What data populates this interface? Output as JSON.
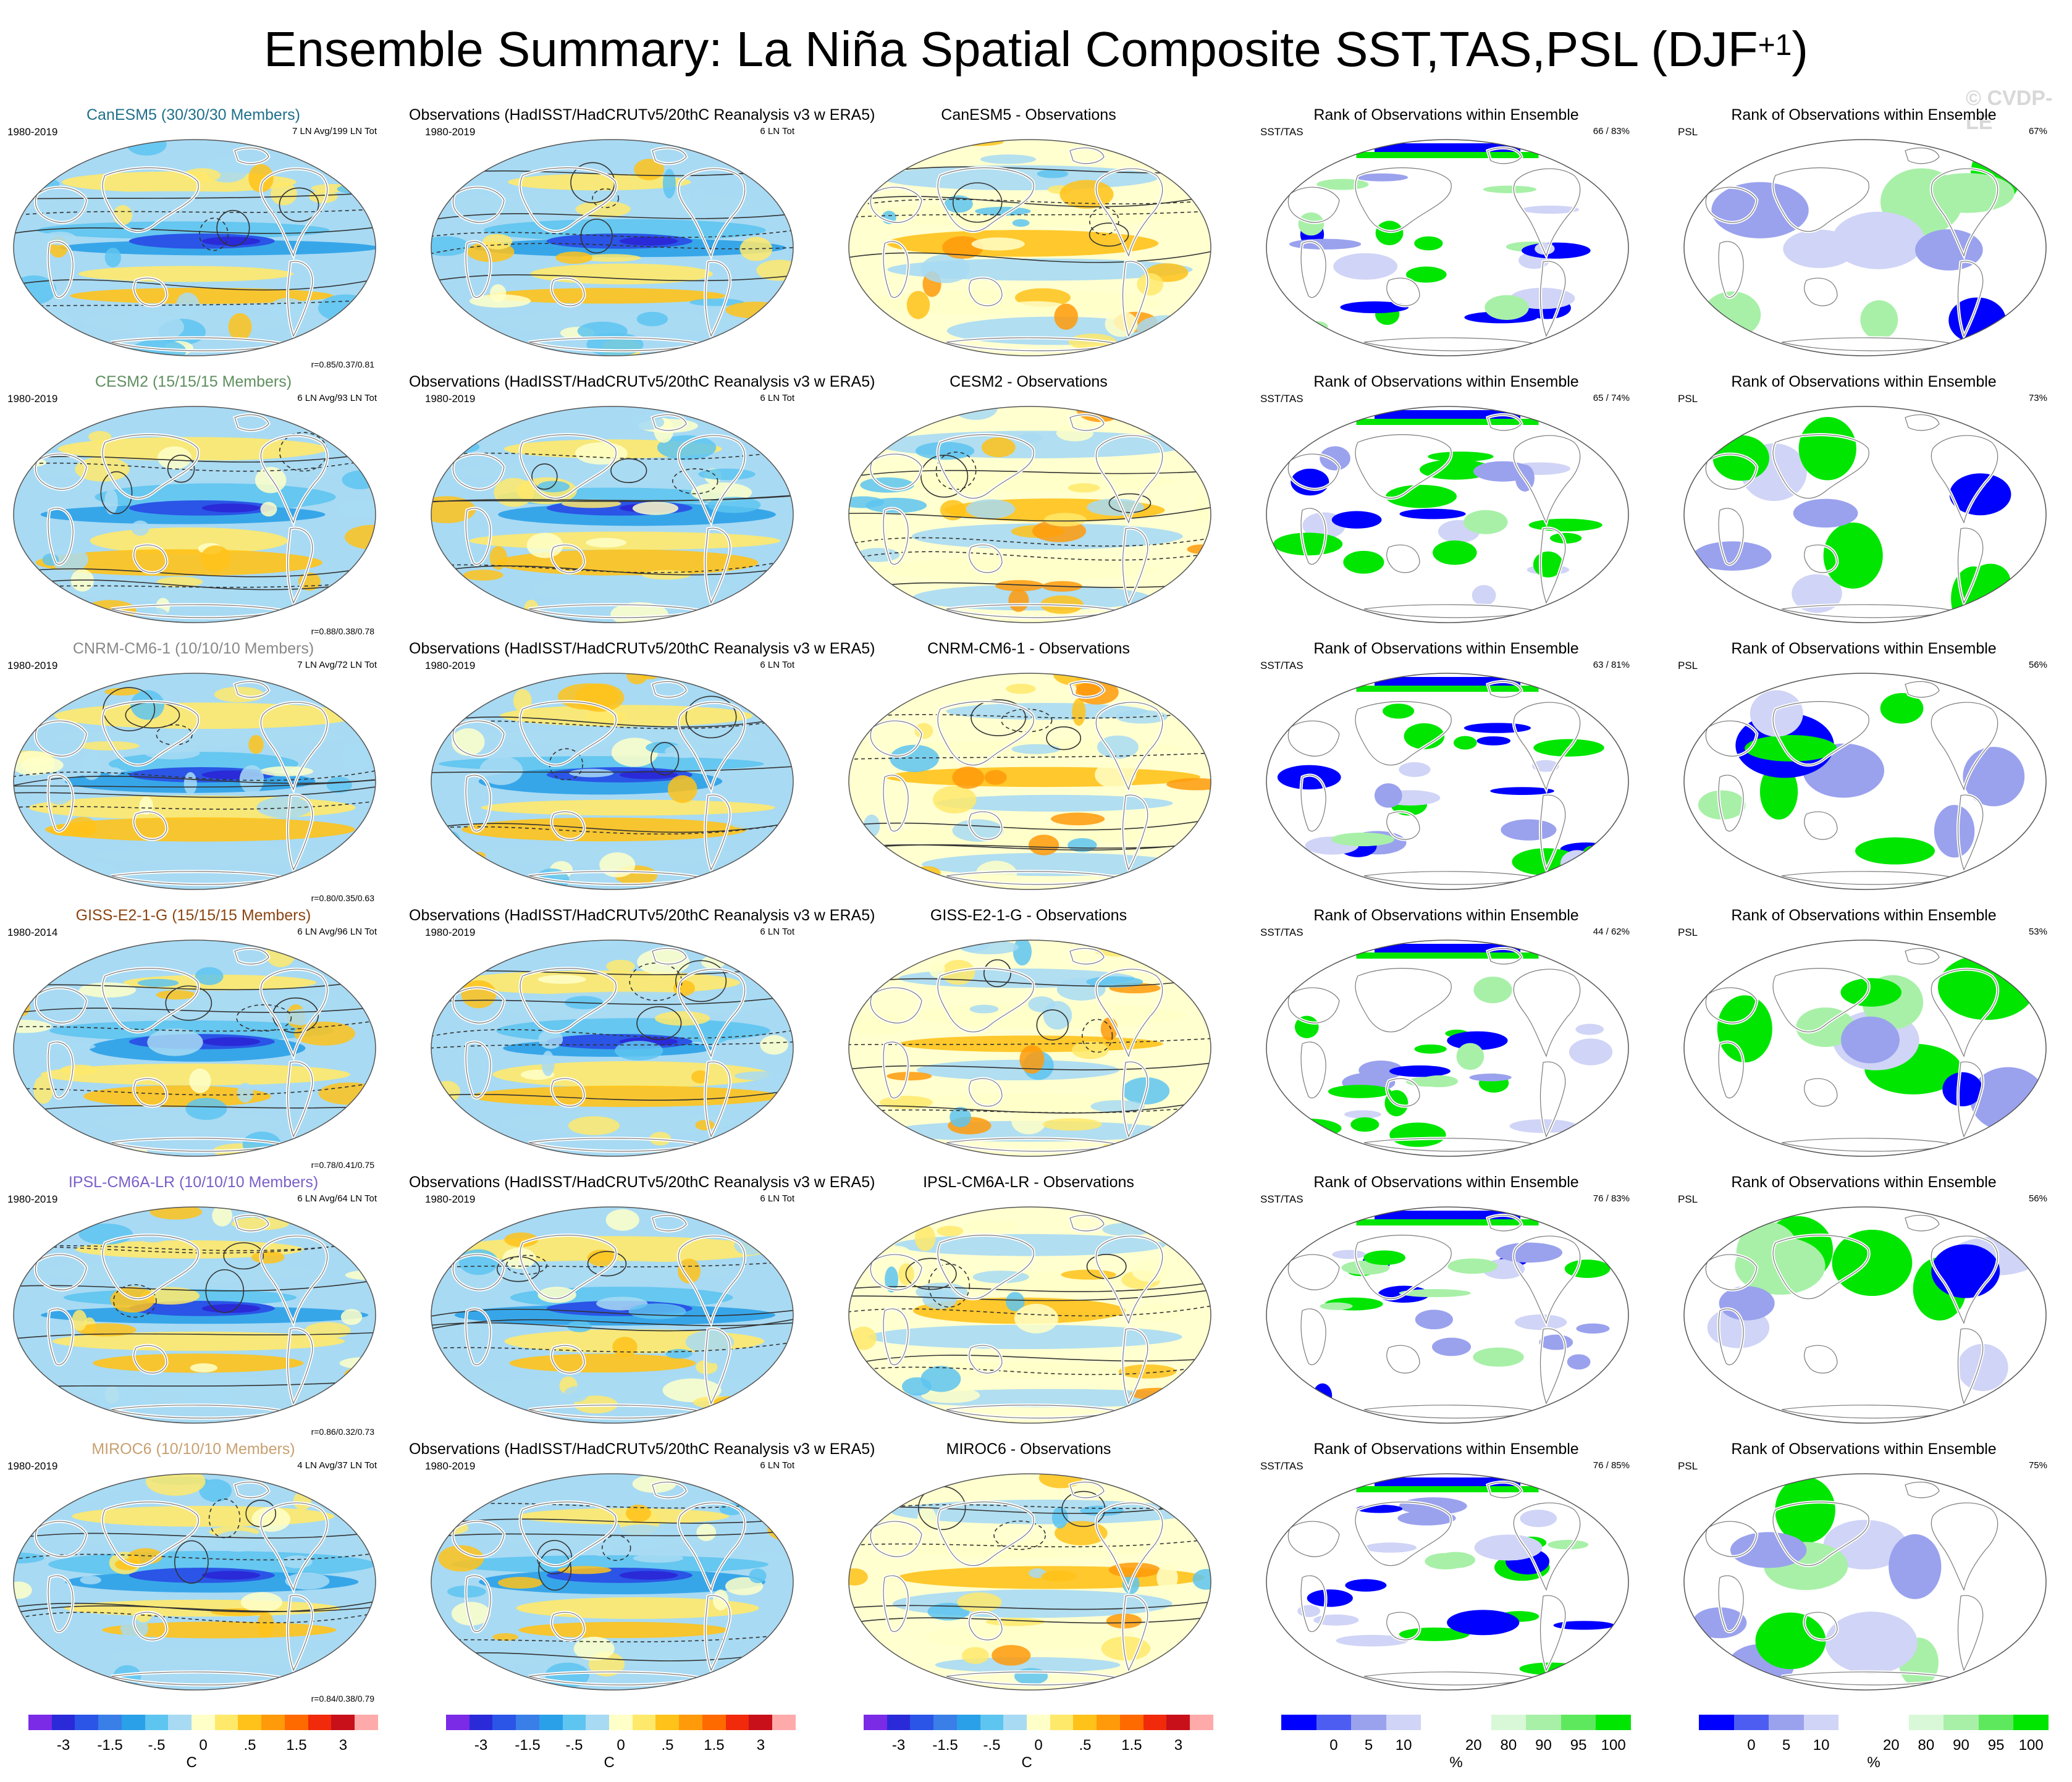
{
  "title": "Ensemble Summary: La Niña Spatial Composite SST,TAS,PSL (DJF",
  "title_sup": "+1",
  "title_close": ")",
  "watermark": "© CVDP-LE",
  "rows": [
    {
      "model": {
        "title": "CanESM5 (30/30/30 Members)",
        "title_color": "#1f6f8b",
        "period": "1980-2019",
        "count": "7 LN Avg/199 LN Tot",
        "corr": "r=0.85/0.37/0.81"
      },
      "obs": {
        "title": "Observations (HadISST/HadCRUTv5/20thC Reanalysis v3 w ERA5)",
        "period": "1980-2019",
        "count": "6 LN Tot"
      },
      "diff": {
        "title": "CanESM5 - Observations"
      },
      "rank_sst": {
        "title": "Rank of Observations within Ensemble",
        "label": "SST/TAS",
        "pct": "66 /  83%"
      },
      "rank_psl": {
        "title": "Rank of Observations within Ensemble",
        "label": "PSL",
        "pct": "67%"
      }
    },
    {
      "model": {
        "title": "CESM2 (15/15/15 Members)",
        "title_color": "#5f8f5f",
        "period": "1980-2019",
        "count": "6 LN Avg/93 LN Tot",
        "corr": "r=0.88/0.38/0.78"
      },
      "obs": {
        "title": "Observations (HadISST/HadCRUTv5/20thC Reanalysis v3 w ERA5)",
        "period": "1980-2019",
        "count": "6 LN Tot"
      },
      "diff": {
        "title": "CESM2 - Observations"
      },
      "rank_sst": {
        "title": "Rank of Observations within Ensemble",
        "label": "SST/TAS",
        "pct": "65 /  74%"
      },
      "rank_psl": {
        "title": "Rank of Observations within Ensemble",
        "label": "PSL",
        "pct": "73%"
      }
    },
    {
      "model": {
        "title": "CNRM-CM6-1 (10/10/10 Members)",
        "title_color": "#888888",
        "period": "1980-2019",
        "count": "7 LN Avg/72 LN Tot",
        "corr": "r=0.80/0.35/0.63"
      },
      "obs": {
        "title": "Observations (HadISST/HadCRUTv5/20thC Reanalysis v3 w ERA5)",
        "period": "1980-2019",
        "count": "6 LN Tot"
      },
      "diff": {
        "title": "CNRM-CM6-1 - Observations"
      },
      "rank_sst": {
        "title": "Rank of Observations within Ensemble",
        "label": "SST/TAS",
        "pct": "63 /  81%"
      },
      "rank_psl": {
        "title": "Rank of Observations within Ensemble",
        "label": "PSL",
        "pct": "56%"
      }
    },
    {
      "model": {
        "title": "GISS-E2-1-G (15/15/15 Members)",
        "title_color": "#8b4513",
        "period": "1980-2014",
        "count": "6 LN Avg/96 LN Tot",
        "corr": "r=0.78/0.41/0.75"
      },
      "obs": {
        "title": "Observations (HadISST/HadCRUTv5/20thC Reanalysis v3 w ERA5)",
        "period": "1980-2019",
        "count": "6 LN Tot"
      },
      "diff": {
        "title": "GISS-E2-1-G - Observations"
      },
      "rank_sst": {
        "title": "Rank of Observations within Ensemble",
        "label": "SST/TAS",
        "pct": "44 /  62%"
      },
      "rank_psl": {
        "title": "Rank of Observations within Ensemble",
        "label": "PSL",
        "pct": "53%"
      }
    },
    {
      "model": {
        "title": "IPSL-CM6A-LR (10/10/10 Members)",
        "title_color": "#7a5fc8",
        "period": "1980-2019",
        "count": "6 LN Avg/64 LN Tot",
        "corr": "r=0.86/0.32/0.73"
      },
      "obs": {
        "title": "Observations (HadISST/HadCRUTv5/20thC Reanalysis v3 w ERA5)",
        "period": "1980-2019",
        "count": "6 LN Tot"
      },
      "diff": {
        "title": "IPSL-CM6A-LR - Observations"
      },
      "rank_sst": {
        "title": "Rank of Observations within Ensemble",
        "label": "SST/TAS",
        "pct": "76 /  83%"
      },
      "rank_psl": {
        "title": "Rank of Observations within Ensemble",
        "label": "PSL",
        "pct": "56%"
      }
    },
    {
      "model": {
        "title": "MIROC6 (10/10/10 Members)",
        "title_color": "#c8a070",
        "period": "1980-2019",
        "count": "4 LN Avg/37 LN Tot",
        "corr": "r=0.84/0.38/0.79"
      },
      "obs": {
        "title": "Observations (HadISST/HadCRUTv5/20thC Reanalysis v3 w ERA5)",
        "period": "1980-2019",
        "count": "6 LN Tot"
      },
      "diff": {
        "title": "MIROC6 - Observations"
      },
      "rank_sst": {
        "title": "Rank of Observations within Ensemble",
        "label": "SST/TAS",
        "pct": "76 /  85%"
      },
      "rank_psl": {
        "title": "Rank of Observations within Ensemble",
        "label": "PSL",
        "pct": "75%"
      }
    }
  ],
  "legend_temp": {
    "colors": [
      "#7b2ae6",
      "#2a2ad8",
      "#2a55e6",
      "#3a7ee8",
      "#2aa0e8",
      "#5ec4f0",
      "#a8daf3",
      "#ffffc8",
      "#ffe96b",
      "#ffc21a",
      "#ff9a0a",
      "#ff6a00",
      "#f02a0a",
      "#c8101a",
      "#ffaaaa"
    ],
    "ticks": [
      "-3",
      "-1.5",
      "-.5",
      "0",
      ".5",
      "1.5",
      "3"
    ],
    "unit": "C"
  },
  "legend_rank": {
    "colors": [
      "#0000ff",
      "#4d5df2",
      "#9aa2ee",
      "#d0d4f6",
      "#ffffff",
      "#ffffff",
      "#d8f8d8",
      "#a8f0a8",
      "#5ee85e",
      "#00e600"
    ],
    "ticks": [
      "0",
      "5",
      "10",
      "20",
      "80",
      "90",
      "95",
      "100"
    ],
    "unit": "%"
  }
}
